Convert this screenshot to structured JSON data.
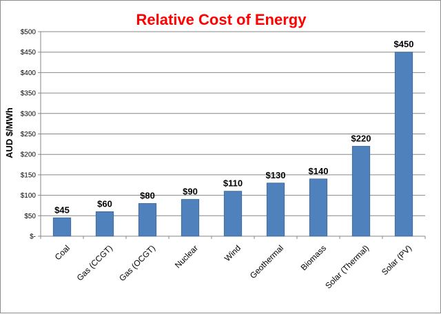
{
  "chart_data": {
    "type": "bar",
    "title": "Relative Cost of Energy",
    "ylabel": "AUD $/MWh",
    "xlabel": "",
    "categories": [
      "Coal",
      "Gas (CCGT)",
      "Gas (OCGT)",
      "Nuclear",
      "Wind",
      "Geothermal",
      "Biomass",
      "Solar (Thermal)",
      "Solar (PV)"
    ],
    "values": [
      45,
      60,
      80,
      90,
      110,
      130,
      140,
      220,
      450
    ],
    "data_labels": [
      "$45",
      "$60",
      "$80",
      "$90",
      "$110",
      "$130",
      "$140",
      "$220",
      "$450"
    ],
    "yticks": [
      0,
      50,
      100,
      150,
      200,
      250,
      300,
      350,
      400,
      450,
      500
    ],
    "ytick_labels": [
      "$-",
      "$50",
      "$100",
      "$150",
      "$200",
      "$250",
      "$300",
      "$350",
      "$400",
      "$450",
      "$500"
    ],
    "ylim": [
      0,
      500
    ],
    "grid": true,
    "legend": "none",
    "colors": {
      "bar": "#4f81bd",
      "bar_edge": "#3a6595",
      "title": "#ff0000",
      "grid": "#868686",
      "axis": "#868686"
    }
  }
}
